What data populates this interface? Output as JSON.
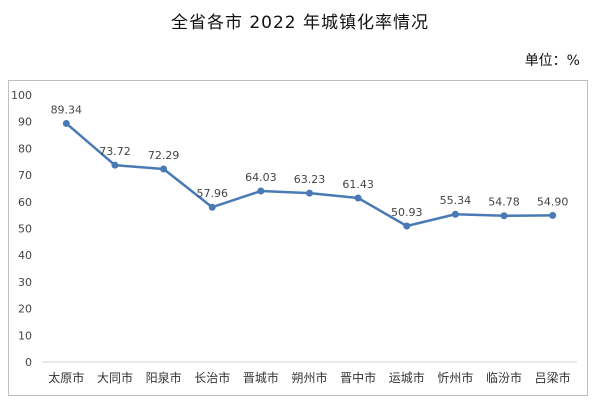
{
  "title": "全省各市 2022 年城镇化率情况",
  "unit_label": "单位：%",
  "chart_data": {
    "type": "line",
    "title": "全省各市 2022 年城镇化率情况",
    "unit": "单位：%",
    "categories": [
      "太原市",
      "大同市",
      "阳泉市",
      "长治市",
      "晋城市",
      "朔州市",
      "晋中市",
      "运城市",
      "忻州市",
      "临汾市",
      "吕梁市"
    ],
    "values": [
      89.34,
      73.72,
      72.29,
      57.96,
      64.03,
      63.23,
      61.43,
      50.93,
      55.34,
      54.78,
      54.9
    ],
    "value_labels": [
      "89.34",
      "73.72",
      "72.29",
      "57.96",
      "64.03",
      "63.23",
      "61.43",
      "50.93",
      "55.34",
      "54.78",
      "54.90"
    ],
    "ylim": [
      0,
      100
    ],
    "yticks": [
      "0",
      "10",
      "20",
      "30",
      "40",
      "50",
      "60",
      "70",
      "80",
      "90",
      "100"
    ],
    "grid": false,
    "legend": "none",
    "line_color": "#4a7ab5"
  }
}
